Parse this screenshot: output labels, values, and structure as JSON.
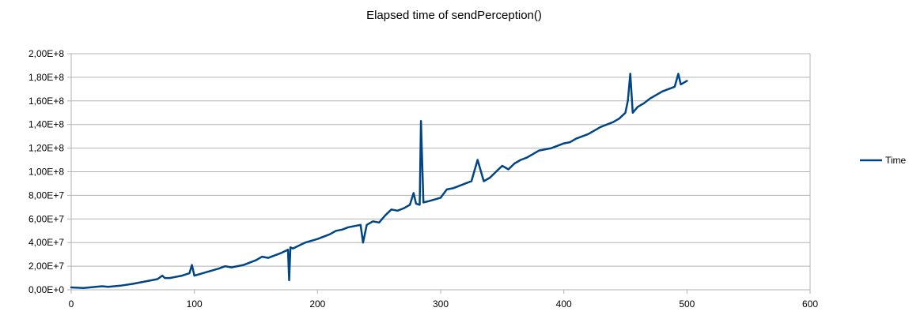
{
  "chart_data": {
    "type": "line",
    "title": "Elapsed time of sendPerception()",
    "xlabel": "",
    "ylabel": "",
    "xlim": [
      0,
      600
    ],
    "ylim": [
      0,
      200000000
    ],
    "x_ticks": [
      {
        "value": 0,
        "label": "0"
      },
      {
        "value": 100,
        "label": "100"
      },
      {
        "value": 200,
        "label": "200"
      },
      {
        "value": 300,
        "label": "300"
      },
      {
        "value": 400,
        "label": "400"
      },
      {
        "value": 500,
        "label": "500"
      },
      {
        "value": 600,
        "label": "600"
      }
    ],
    "y_ticks": [
      {
        "value": 0,
        "label": "0,00E+0"
      },
      {
        "value": 20000000,
        "label": "2,00E+7"
      },
      {
        "value": 40000000,
        "label": "4,00E+7"
      },
      {
        "value": 60000000,
        "label": "6,00E+7"
      },
      {
        "value": 80000000,
        "label": "8,00E+7"
      },
      {
        "value": 100000000,
        "label": "1,00E+8"
      },
      {
        "value": 120000000,
        "label": "1,20E+8"
      },
      {
        "value": 140000000,
        "label": "1,40E+8"
      },
      {
        "value": 160000000,
        "label": "1,60E+8"
      },
      {
        "value": 180000000,
        "label": "1,80E+8"
      },
      {
        "value": 200000000,
        "label": "2,00E+8"
      }
    ],
    "grid": "horizontal",
    "legend_position": "right",
    "series": [
      {
        "name": "Time",
        "color": "#004586",
        "x": [
          0,
          10,
          20,
          25,
          30,
          40,
          50,
          60,
          65,
          70,
          74,
          76,
          80,
          90,
          96,
          98,
          100,
          110,
          120,
          125,
          130,
          140,
          150,
          155,
          160,
          170,
          176,
          177,
          178,
          180,
          190,
          200,
          210,
          215,
          220,
          225,
          230,
          235,
          237,
          240,
          245,
          250,
          255,
          260,
          265,
          270,
          275,
          278,
          280,
          283,
          284,
          286,
          290,
          300,
          305,
          310,
          315,
          320,
          325,
          330,
          335,
          340,
          345,
          350,
          355,
          360,
          365,
          370,
          375,
          380,
          385,
          390,
          395,
          400,
          405,
          410,
          415,
          420,
          425,
          430,
          435,
          440,
          445,
          450,
          452,
          454,
          456,
          460,
          465,
          470,
          475,
          480,
          485,
          490,
          493,
          495,
          500
        ],
        "y": [
          2000000,
          1500000,
          2500000,
          3000000,
          2500000,
          3500000,
          5000000,
          7000000,
          8000000,
          9000000,
          12000000,
          10000000,
          10000000,
          12000000,
          14000000,
          21000000,
          12000000,
          15000000,
          18000000,
          20000000,
          19000000,
          21000000,
          25000000,
          28000000,
          27000000,
          31000000,
          34000000,
          8000000,
          36000000,
          35000000,
          40000000,
          43000000,
          47000000,
          50000000,
          51000000,
          53000000,
          54000000,
          55000000,
          40000000,
          55000000,
          58000000,
          57000000,
          63000000,
          68000000,
          67000000,
          69000000,
          72000000,
          82000000,
          73000000,
          72000000,
          143000000,
          74000000,
          75000000,
          78000000,
          85000000,
          86000000,
          88000000,
          90000000,
          92000000,
          110000000,
          92000000,
          95000000,
          100000000,
          105000000,
          102000000,
          107000000,
          110000000,
          112000000,
          115000000,
          118000000,
          119000000,
          120000000,
          122000000,
          124000000,
          125000000,
          128000000,
          130000000,
          132000000,
          135000000,
          138000000,
          140000000,
          142000000,
          145000000,
          150000000,
          160000000,
          183000000,
          150000000,
          155000000,
          158000000,
          162000000,
          165000000,
          168000000,
          170000000,
          172000000,
          183000000,
          174000000,
          177000000
        ]
      }
    ]
  }
}
